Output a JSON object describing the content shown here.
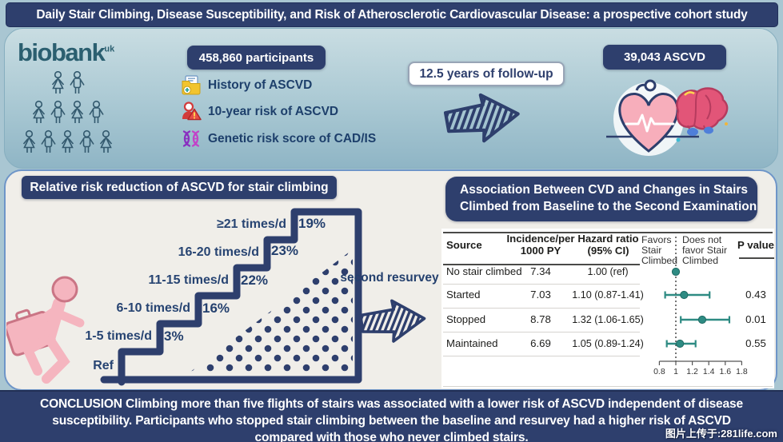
{
  "title": "Daily Stair Climbing, Disease Susceptibility, and Risk of Atherosclerotic Cardiovascular Disease: a prospective cohort study",
  "top": {
    "logo_text": "biobank",
    "logo_sup": "uk",
    "participants": "458,860 participants",
    "items": [
      {
        "icon": "folder-plus-icon",
        "label": "History of ASCVD"
      },
      {
        "icon": "person-warning-icon",
        "label": "10-year risk of ASCVD"
      },
      {
        "icon": "dna-icon",
        "label": "Genetic risk score of CAD/IS"
      }
    ],
    "followup": "12.5 years of follow-up",
    "outcome": "39,043 ASCVD"
  },
  "stair_panel": {
    "header": "Relative risk reduction of ASCVD for stair climbing",
    "resurvey_label": "second resurvey"
  },
  "assoc_panel": {
    "header_lines": [
      "Association Between CVD and Changes in Stairs",
      "Climbed from Baseline to the Second Examination"
    ],
    "col_headers": {
      "source": "Source",
      "incidence": [
        "Incidence/per",
        "1000 PY"
      ],
      "hazard": [
        "Hazard ratio",
        "(95% CI)"
      ],
      "favors": [
        "Favors",
        "Stair",
        "Climbed"
      ],
      "not_favors": [
        "Does not",
        "favor Stair",
        "Climbed"
      ],
      "p": "P value"
    }
  },
  "chart_data": [
    {
      "type": "bar",
      "title": "Relative risk reduction of ASCVD for stair climbing",
      "categories": [
        "Ref",
        "1-5 times/d",
        "6-10 times/d",
        "11-15 times/d",
        "16-20 times/d",
        "≥21 times/d"
      ],
      "values": [
        0,
        3,
        16,
        22,
        23,
        19
      ],
      "value_labels": [
        "",
        "3%",
        "16%",
        "22%",
        "23%",
        "19%"
      ],
      "ylabel": "relative risk reduction of ASCVD (%)"
    },
    {
      "type": "scatter",
      "subtype": "forest",
      "title": "Association Between CVD and Changes in Stairs Climbed from Baseline to the Second Examination",
      "rows": [
        {
          "source": "No stair climbed",
          "incidence": "7.34",
          "hr_text": "1.00 (ref)",
          "hr": 1.0,
          "lo": null,
          "hi": null,
          "p": ""
        },
        {
          "source": "Started",
          "incidence": "7.03",
          "hr_text": "1.10 (0.87-1.41)",
          "hr": 1.1,
          "lo": 0.87,
          "hi": 1.41,
          "p": "0.43"
        },
        {
          "source": "Stopped",
          "incidence": "8.78",
          "hr_text": "1.32 (1.06-1.65)",
          "hr": 1.32,
          "lo": 1.06,
          "hi": 1.65,
          "p": "0.01"
        },
        {
          "source": "Maintained",
          "incidence": "6.69",
          "hr_text": "1.05 (0.89-1.24)",
          "hr": 1.05,
          "lo": 0.89,
          "hi": 1.24,
          "p": "0.55"
        }
      ],
      "x_ticks": [
        0.8,
        1,
        1.2,
        1.4,
        1.6,
        1.8
      ],
      "xlim": [
        0.75,
        1.85
      ],
      "reference_line": 1.0,
      "legend_left": "Favors Stair Climbed",
      "legend_right": "Does not favor Stair Climbed"
    }
  ],
  "conclusion": "CONCLUSION Climbing more than five flights of stairs was associated with a lower risk of ASCVD independent of disease susceptibility. Participants who stopped stair climbing between the baseline and resurvey had a higher risk of ASCVD compared with those who never climbed stairs.",
  "watermark": "图片上传于:281life.com",
  "colors": {
    "navy": "#2e3f6d",
    "forest_teal": "#2e8b83",
    "panel_bg": "#f0eee9",
    "page_bg": "#a9c6d2",
    "figure_pink": "#f3b3bd",
    "logo_teal": "#2b5f70"
  }
}
